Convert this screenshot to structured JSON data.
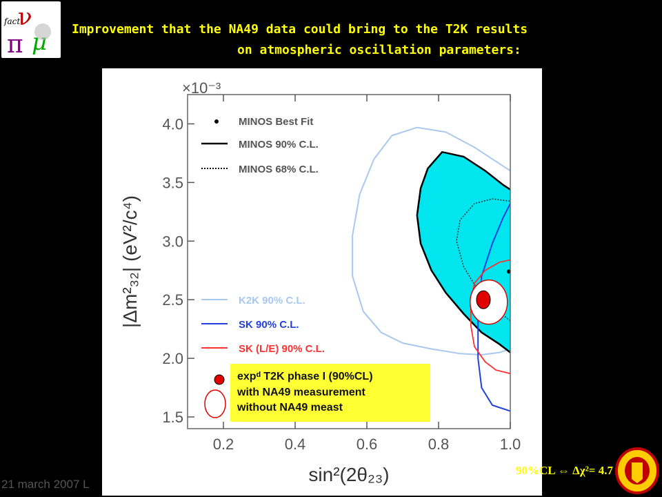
{
  "header": {
    "title_line1": "Improvement that the NA49 data could bring to the T2K results",
    "title_line2": "on atmospheric oscillation parameters:",
    "logo_text": "fact"
  },
  "footer": {
    "date_text": "21 march 2007 L",
    "cl_note": "90%CL ⇔ Δχ²= 4.7"
  },
  "colors": {
    "title": "#ffff00",
    "minos_fill": "#00e5ee",
    "k2k": "#a8c8f0",
    "sk": "#2040e0",
    "sk_le": "#ff3030",
    "t2k_dot": "#e00000",
    "legend_box": "#ffff33"
  },
  "chart_data": {
    "type": "line",
    "exponent_label": "×10⁻³",
    "xlabel": "sin²(2θ₂₃)",
    "ylabel": "|Δm²₃₂| (eV²/c⁴)",
    "xlim": [
      0.1,
      1.0
    ],
    "ylim": [
      1.4,
      4.25
    ],
    "x_ticks": [
      0.2,
      0.4,
      0.6,
      0.8,
      1.0
    ],
    "x_tick_labels": [
      "0.2",
      "0.4",
      "0.6",
      "0.8",
      "1.0"
    ],
    "y_ticks": [
      1.5,
      2.0,
      2.5,
      3.0,
      3.5,
      4.0
    ],
    "y_tick_labels": [
      "1.5",
      "2.0",
      "2.5",
      "3.0",
      "3.5",
      "4.0"
    ],
    "legend": [
      {
        "label": "MINOS Best Fit",
        "style": "dot"
      },
      {
        "label": "MINOS 90% C.L.",
        "style": "solid"
      },
      {
        "label": "MINOS 68% C.L.",
        "style": "dotted"
      },
      {
        "label": "K2K 90% C.L.",
        "style": "k2k"
      },
      {
        "label": "SK 90% C.L.",
        "style": "sk"
      },
      {
        "label": "SK (L/E) 90% C.L.",
        "style": "skle"
      }
    ],
    "t2k_box": [
      {
        "label": "expᵈ T2K phase I (90%CL)"
      },
      {
        "label": "with NA49 measurement"
      },
      {
        "label": "without NA49 meast"
      }
    ],
    "minos_best_fit": {
      "x": 1.0,
      "y": 2.74
    },
    "t2k_with_na49": {
      "x": 0.925,
      "y": 2.5
    },
    "t2k_without_na49": {
      "x": 0.94,
      "y": 2.48
    },
    "series": [
      {
        "name": "MINOS 90% C.L.",
        "points": [
          [
            1.0,
            2.05
          ],
          [
            0.97,
            2.12
          ],
          [
            0.92,
            2.22
          ],
          [
            0.87,
            2.38
          ],
          [
            0.82,
            2.56
          ],
          [
            0.78,
            2.75
          ],
          [
            0.75,
            2.98
          ],
          [
            0.74,
            3.22
          ],
          [
            0.75,
            3.45
          ],
          [
            0.77,
            3.62
          ],
          [
            0.81,
            3.76
          ],
          [
            0.87,
            3.72
          ],
          [
            0.93,
            3.6
          ],
          [
            0.98,
            3.48
          ],
          [
            1.0,
            3.44
          ]
        ]
      },
      {
        "name": "MINOS 68% C.L.",
        "points": [
          [
            1.0,
            2.32
          ],
          [
            0.96,
            2.42
          ],
          [
            0.91,
            2.58
          ],
          [
            0.87,
            2.78
          ],
          [
            0.85,
            3.0
          ],
          [
            0.86,
            3.18
          ],
          [
            0.9,
            3.32
          ],
          [
            0.95,
            3.36
          ],
          [
            1.0,
            3.34
          ]
        ]
      },
      {
        "name": "K2K 90% C.L.",
        "points": [
          [
            1.0,
            2.08
          ],
          [
            0.97,
            2.05
          ],
          [
            0.92,
            2.03
          ],
          [
            0.86,
            2.04
          ],
          [
            0.78,
            2.08
          ],
          [
            0.7,
            2.13
          ],
          [
            0.64,
            2.22
          ],
          [
            0.59,
            2.4
          ],
          [
            0.56,
            2.7
          ],
          [
            0.56,
            3.05
          ],
          [
            0.58,
            3.4
          ],
          [
            0.62,
            3.7
          ],
          [
            0.67,
            3.9
          ],
          [
            0.74,
            3.97
          ],
          [
            0.82,
            3.93
          ],
          [
            0.9,
            3.8
          ],
          [
            0.96,
            3.68
          ],
          [
            1.0,
            3.6
          ]
        ]
      },
      {
        "name": "SK 90% C.L.",
        "points": [
          [
            1.0,
            1.55
          ],
          [
            0.95,
            1.6
          ],
          [
            0.92,
            1.75
          ],
          [
            0.91,
            2.0
          ],
          [
            0.91,
            2.35
          ],
          [
            0.92,
            2.7
          ],
          [
            0.95,
            2.98
          ],
          [
            0.98,
            3.2
          ],
          [
            1.0,
            3.32
          ]
        ]
      },
      {
        "name": "SK (L/E) 90% C.L.",
        "points": [
          [
            1.0,
            1.87
          ],
          [
            0.96,
            1.9
          ],
          [
            0.93,
            1.97
          ],
          [
            0.9,
            2.1
          ],
          [
            0.89,
            2.28
          ],
          [
            0.89,
            2.48
          ],
          [
            0.9,
            2.64
          ],
          [
            0.93,
            2.75
          ],
          [
            0.97,
            2.82
          ],
          [
            1.0,
            2.84
          ]
        ]
      }
    ]
  }
}
